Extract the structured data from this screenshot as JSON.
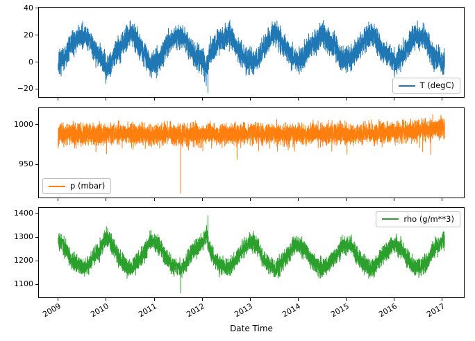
{
  "figure": {
    "background": "#ffffff",
    "xlabel": "Date Time",
    "x_ticks": [
      2009,
      2010,
      2011,
      2012,
      2013,
      2014,
      2015,
      2016,
      2017
    ],
    "xlim": [
      2008.598,
      2017.452
    ]
  },
  "chart_data": [
    {
      "type": "line",
      "title": "",
      "ylabel": "",
      "legend_position": "lower right",
      "yticks": [
        -20,
        0,
        20,
        40
      ],
      "ylim": [
        -26,
        40.5
      ],
      "grid": false,
      "series": [
        {
          "name": "T (degC)",
          "color": "#1f77b4",
          "x_start": 2009.0,
          "x_step": 0.0833333,
          "x_data_range": [
            2009.0,
            2017.05
          ],
          "means": [
            -2,
            1,
            4,
            12,
            15,
            17,
            20,
            20,
            16,
            9,
            7,
            1,
            -4,
            -1,
            5,
            10,
            13,
            18,
            22,
            19,
            14,
            9,
            5,
            -3,
            0,
            1,
            6,
            12,
            15,
            18,
            19,
            20,
            16,
            10,
            5,
            3,
            1,
            -6,
            7,
            10,
            16,
            17,
            20,
            20,
            15,
            9,
            6,
            1,
            0,
            0,
            2,
            10,
            13,
            18,
            21,
            19,
            14,
            11,
            5,
            3,
            1,
            3,
            7,
            12,
            14,
            17,
            21,
            18,
            16,
            12,
            7,
            2,
            2,
            1,
            6,
            10,
            14,
            17,
            21,
            22,
            14,
            9,
            7,
            5,
            0,
            2,
            5,
            9,
            15,
            18,
            20,
            19,
            17,
            9,
            4,
            2,
            -1
          ],
          "noise_amplitude": 9,
          "outliers": [
            {
              "x": 2012.12,
              "y": -23
            }
          ]
        }
      ]
    },
    {
      "type": "line",
      "title": "",
      "ylabel": "",
      "legend_position": "lower left",
      "yticks": [
        950,
        1000
      ],
      "ylim": [
        908,
        1021
      ],
      "grid": false,
      "series": [
        {
          "name": "p (mbar)",
          "color": "#ff7f0e",
          "x_start": 2009.0,
          "x_step": 1.0,
          "x_data_range": [
            2009.0,
            2017.05
          ],
          "means": [
            988,
            989,
            988,
            987,
            989,
            988,
            988,
            990,
            996
          ],
          "noise_amplitude": 13,
          "spike_low": {
            "p": 0.01,
            "mag": 24
          },
          "outliers": [
            {
              "x": 2011.55,
              "y": 913
            }
          ]
        }
      ]
    },
    {
      "type": "line",
      "title": "",
      "ylabel": "",
      "legend_position": "upper right",
      "yticks": [
        1100,
        1200,
        1300,
        1400
      ],
      "ylim": [
        1045,
        1425
      ],
      "grid": false,
      "series": [
        {
          "name": "rho (g/m**3)",
          "color": "#2ca02c",
          "x_start": 2009.0,
          "x_step": 0.0833333,
          "x_data_range": [
            2009.0,
            2017.05
          ],
          "means": [
            1290,
            1272,
            1250,
            1210,
            1190,
            1180,
            1170,
            1175,
            1195,
            1225,
            1235,
            1265,
            1300,
            1285,
            1250,
            1215,
            1195,
            1180,
            1165,
            1180,
            1200,
            1225,
            1250,
            1295,
            1280,
            1270,
            1245,
            1210,
            1190,
            1175,
            1170,
            1172,
            1190,
            1220,
            1245,
            1260,
            1275,
            1310,
            1240,
            1212,
            1185,
            1178,
            1170,
            1172,
            1195,
            1222,
            1240,
            1270,
            1278,
            1272,
            1262,
            1215,
            1195,
            1178,
            1168,
            1175,
            1198,
            1215,
            1245,
            1262,
            1272,
            1255,
            1240,
            1210,
            1192,
            1180,
            1168,
            1180,
            1192,
            1212,
            1235,
            1268,
            1265,
            1270,
            1245,
            1215,
            1192,
            1180,
            1168,
            1165,
            1198,
            1222,
            1238,
            1255,
            1275,
            1262,
            1250,
            1220,
            1190,
            1178,
            1172,
            1178,
            1188,
            1222,
            1252,
            1265,
            1285
          ],
          "noise_amplitude": 38,
          "outliers": [
            {
              "x": 2011.55,
              "y": 1062
            },
            {
              "x": 2012.12,
              "y": 1394
            }
          ]
        }
      ]
    }
  ]
}
